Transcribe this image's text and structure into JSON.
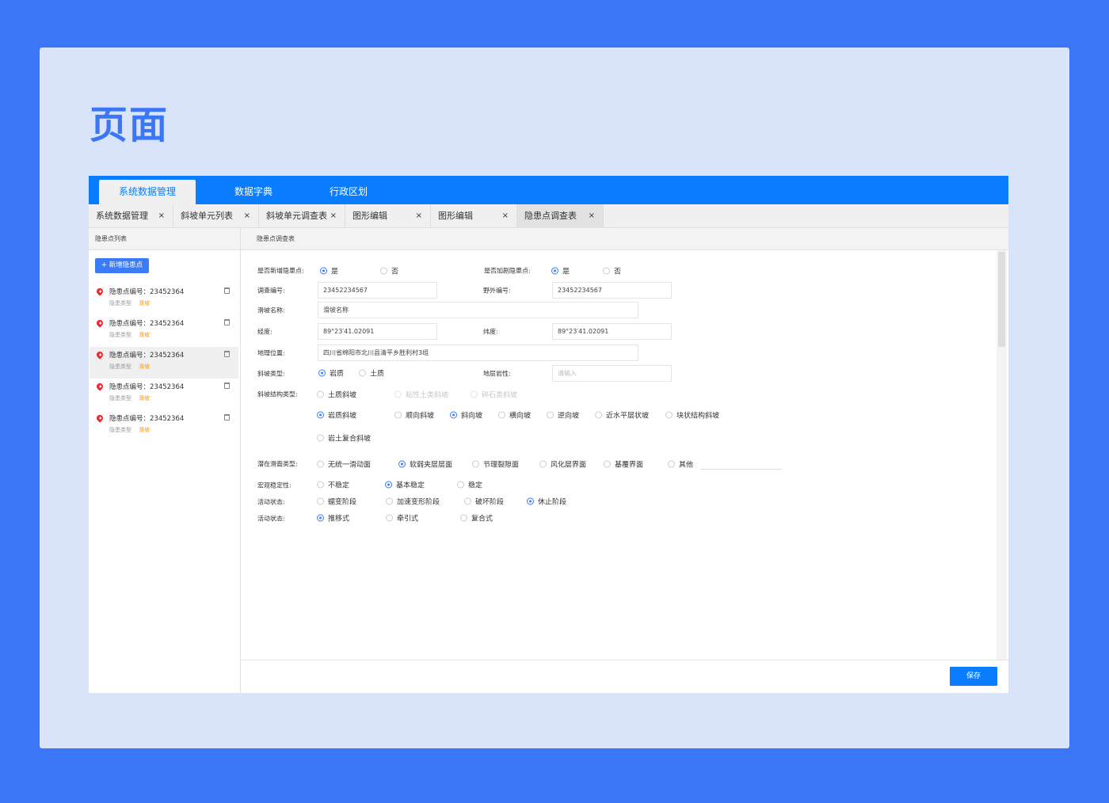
{
  "page_title": "页面",
  "nav": {
    "tabs": [
      {
        "label": "系统数据管理",
        "active": true
      },
      {
        "label": "数据字典"
      },
      {
        "label": "行政区划"
      }
    ]
  },
  "page_tabs": [
    {
      "label": "系统数据管理",
      "close": "×"
    },
    {
      "label": "斜坡单元列表",
      "close": "×"
    },
    {
      "label": "斜坡单元调查表",
      "close": "×"
    },
    {
      "label": "图形编辑",
      "close": "×"
    },
    {
      "label": "图形编辑",
      "close": "×"
    },
    {
      "label": "隐患点调查表",
      "close": "×",
      "active": true
    }
  ],
  "left": {
    "header": "隐患点列表",
    "add_button": "+ 新增隐患点",
    "items": [
      {
        "number": "隐患点编号：23452364",
        "type_label": "隐患类型",
        "type_value": "滑坡"
      },
      {
        "number": "隐患点编号：23452364",
        "type_label": "隐患类型",
        "type_value": "滑坡"
      },
      {
        "number": "隐患点编号：23452364",
        "type_label": "隐患类型",
        "type_value": "滑坡",
        "selected": true
      },
      {
        "number": "隐患点编号：23452364",
        "type_label": "隐患类型",
        "type_value": "滑坡"
      },
      {
        "number": "隐患点编号：23452364",
        "type_label": "隐患类型",
        "type_value": "滑坡"
      }
    ]
  },
  "form": {
    "header": "隐患点调查表",
    "labels": {
      "is_new": "是否新增隐患点:",
      "is_worse": "是否加剧隐患点:",
      "survey_no": "调查编号:",
      "field_no": "野外编号:",
      "slope_name": "滑坡名称:",
      "longitude": "经度:",
      "latitude": "纬度:",
      "location": "地理位置:",
      "slope_type": "斜坡类型:",
      "lithology": "地层岩性:",
      "structure": "斜坡结构类型:",
      "slip_surface": "潜在滑面类型:",
      "stability": "宏观稳定性:",
      "activity": "活动状态:",
      "activity2": "活动状态:"
    },
    "inputs": {
      "survey_no": "23452234567",
      "field_no": "23452234567",
      "slope_name": "滑坡名称",
      "longitude": "89°23′41.02091",
      "latitude": "89°23′41.02091",
      "location": "四川省绵阳市北川县清平乡胜利村3组",
      "lithology": "",
      "lithology_placeholder": "请输入"
    },
    "radios": {
      "is_new": [
        {
          "label": "是",
          "checked": true
        },
        {
          "label": "否"
        }
      ],
      "is_worse": [
        {
          "label": "是",
          "checked": true
        },
        {
          "label": "否"
        }
      ],
      "slope_type": [
        {
          "label": "岩质",
          "checked": true
        },
        {
          "label": "土质"
        }
      ],
      "structure_soil": [
        {
          "label": "土质斜坡"
        },
        {
          "label": "粘性土类斜坡",
          "disabled": true
        },
        {
          "label": "碎石类斜坡",
          "disabled": true
        }
      ],
      "structure_rock": [
        {
          "label": "岩质斜坡",
          "checked": true
        },
        {
          "label": "顺向斜坡"
        },
        {
          "label": "斜向坡",
          "checked": true
        },
        {
          "label": "横向坡"
        },
        {
          "label": "逆向坡"
        },
        {
          "label": "近水平层状坡"
        },
        {
          "label": "块状结构斜坡"
        }
      ],
      "structure_mixed": [
        {
          "label": "岩土复合斜坡"
        }
      ],
      "slip_surface": [
        {
          "label": "无统一滑动面"
        },
        {
          "label": "软弱夹层层面",
          "checked": true
        },
        {
          "label": "节理裂隙面"
        },
        {
          "label": "风化层界面"
        },
        {
          "label": "基覆界面"
        },
        {
          "label": "其他"
        }
      ],
      "stability": [
        {
          "label": "不稳定"
        },
        {
          "label": "基本稳定",
          "checked": true
        },
        {
          "label": "稳定"
        }
      ],
      "activity": [
        {
          "label": "蠕变阶段"
        },
        {
          "label": "加速变形阶段"
        },
        {
          "label": "破坏阶段"
        },
        {
          "label": "休止阶段",
          "checked": true
        }
      ],
      "activity2": [
        {
          "label": "推移式",
          "checked": true
        },
        {
          "label": "牵引式"
        },
        {
          "label": "复合式"
        }
      ]
    },
    "save_button": "保存"
  }
}
